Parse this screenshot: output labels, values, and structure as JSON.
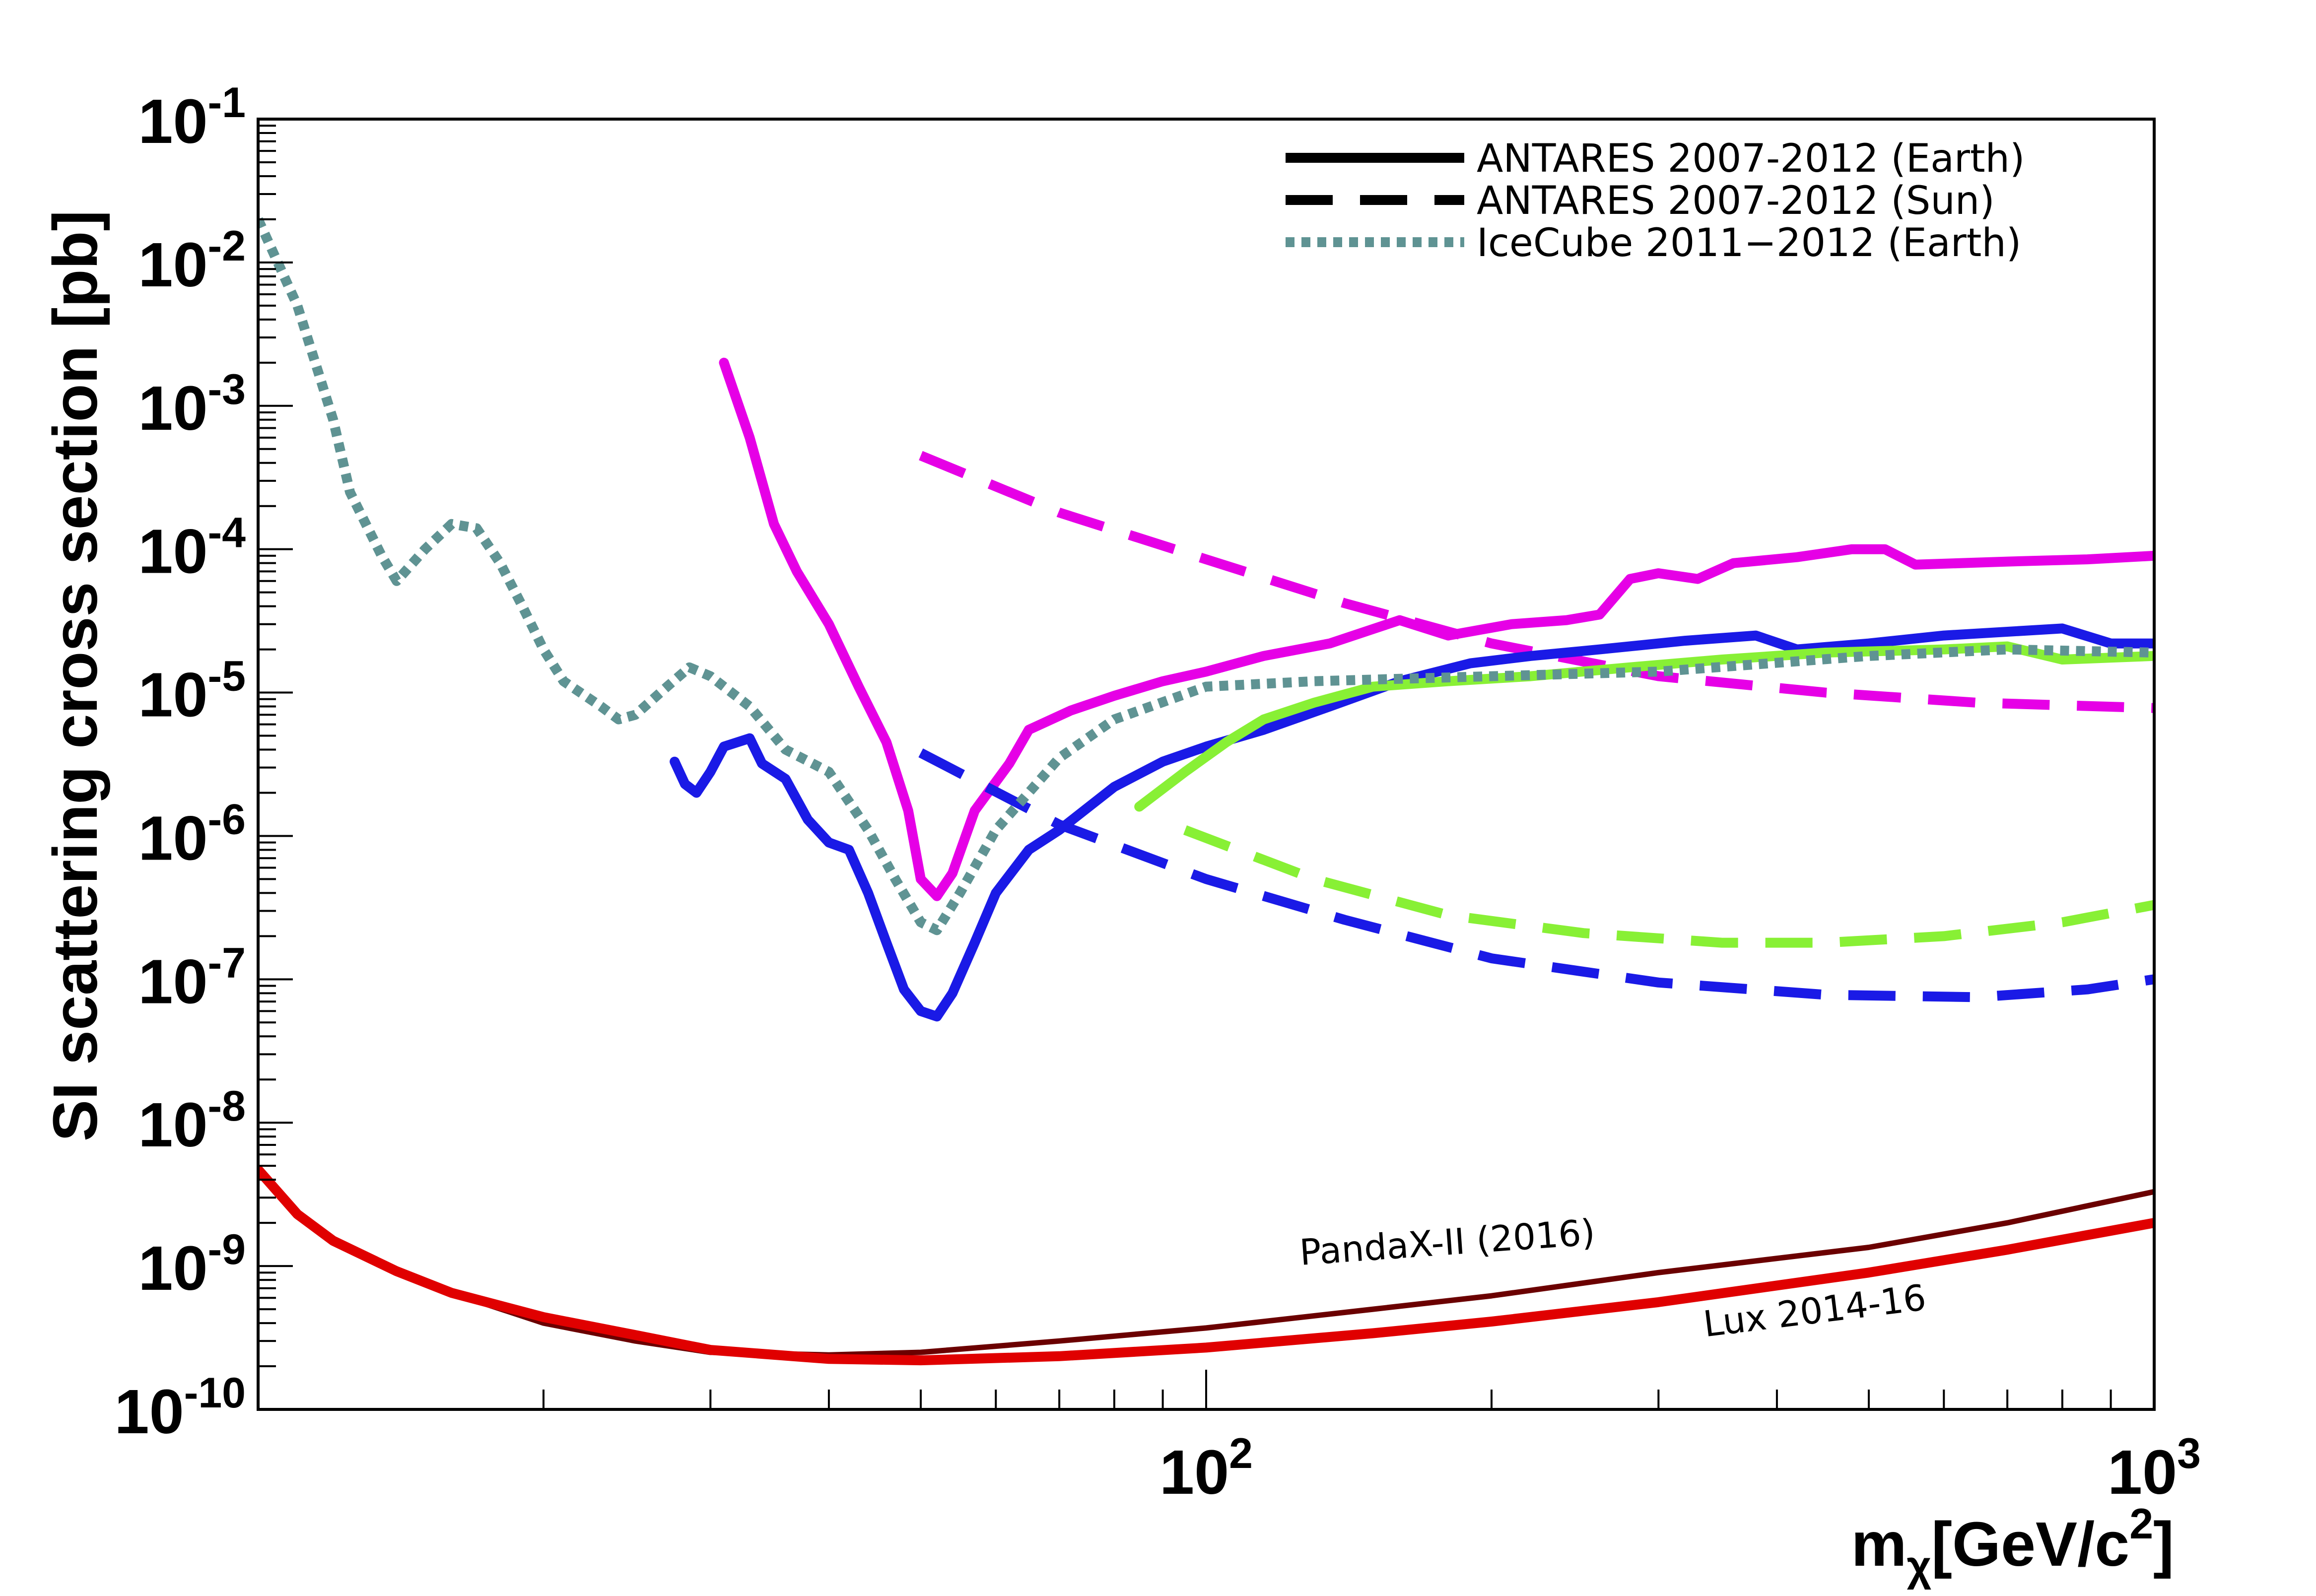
{
  "chart_data": {
    "type": "line",
    "title": "",
    "xlabel": "m",
    "xlabel_sub": "χ",
    "xlabel_unit_pre": "[GeV/c",
    "xlabel_unit_sup": "2",
    "xlabel_unit_post": "]",
    "ylabel": "SI scattering cross section [pb]",
    "x_scale": "log",
    "y_scale": "log",
    "xlim": [
      10,
      1000
    ],
    "ylim": [
      1e-10,
      0.1
    ],
    "x_ticks": [
      {
        "base": "10",
        "exp": "2",
        "value": 100
      },
      {
        "base": "10",
        "exp": "3",
        "value": 1000
      }
    ],
    "y_ticks": [
      {
        "base": "10",
        "exp": "-1",
        "value": 0.1
      },
      {
        "base": "10",
        "exp": "-2",
        "value": 0.01
      },
      {
        "base": "10",
        "exp": "-3",
        "value": 0.001
      },
      {
        "base": "10",
        "exp": "-4",
        "value": 0.0001
      },
      {
        "base": "10",
        "exp": "-5",
        "value": 1e-05
      },
      {
        "base": "10",
        "exp": "-6",
        "value": 1e-06
      },
      {
        "base": "10",
        "exp": "-7",
        "value": 1e-07
      },
      {
        "base": "10",
        "exp": "-8",
        "value": 1e-08
      },
      {
        "base": "10",
        "exp": "-9",
        "value": 1e-09
      },
      {
        "base": "10",
        "exp": "-10",
        "value": 1e-10
      }
    ],
    "grid": false,
    "legend": {
      "position": "top-right",
      "entries": [
        {
          "label": "ANTARES 2007-2012 (Earth)",
          "style": "solid",
          "color": "#000000"
        },
        {
          "label": "ANTARES 2007-2012 (Sun)",
          "style": "dashed",
          "color": "#000000"
        },
        {
          "label": "IceCube 2011−2012 (Earth)",
          "style": "dotted",
          "color": "#5f9393"
        }
      ]
    },
    "annotations": [
      {
        "text": "PandaX-II (2016)",
        "x": 180,
        "y": 1.2e-09,
        "angle": -4
      },
      {
        "text": "Lux 2014-16",
        "x": 440,
        "y": 4e-10,
        "angle": -7
      }
    ],
    "series": [
      {
        "color": "#e600e6",
        "style": "solid",
        "points": [
          [
            31,
            0.002
          ],
          [
            33,
            0.0006
          ],
          [
            35,
            0.00015
          ],
          [
            37,
            7e-05
          ],
          [
            40,
            3e-05
          ],
          [
            43,
            1.1e-05
          ],
          [
            46,
            4.5e-06
          ],
          [
            48.5,
            1.5e-06
          ],
          [
            50,
            5e-07
          ],
          [
            52,
            3.8e-07
          ],
          [
            54,
            5.5e-07
          ],
          [
            57,
            1.5e-06
          ],
          [
            62,
            3.2e-06
          ],
          [
            65,
            5.5e-06
          ],
          [
            72,
            7.5e-06
          ],
          [
            80,
            9.5e-06
          ],
          [
            90,
            1.2e-05
          ],
          [
            100,
            1.4e-05
          ],
          [
            115,
            1.8e-05
          ],
          [
            135,
            2.2e-05
          ],
          [
            160,
            3.2e-05
          ],
          [
            180,
            2.5e-05
          ],
          [
            210,
            3e-05
          ],
          [
            240,
            3.2e-05
          ],
          [
            260,
            3.5e-05
          ],
          [
            280,
            6.2e-05
          ],
          [
            300,
            6.8e-05
          ],
          [
            330,
            6.2e-05
          ],
          [
            360,
            8e-05
          ],
          [
            420,
            8.8e-05
          ],
          [
            480,
            0.0001
          ],
          [
            520,
            0.0001
          ],
          [
            560,
            7.8e-05
          ],
          [
            700,
            8.2e-05
          ],
          [
            850,
            8.5e-05
          ],
          [
            1000,
            9e-05
          ]
        ]
      },
      {
        "color": "#e600e6",
        "style": "dashed",
        "points": [
          [
            50,
            0.00045
          ],
          [
            70,
            0.00018
          ],
          [
            100,
            8.5e-05
          ],
          [
            140,
            4.2e-05
          ],
          [
            200,
            2.2e-05
          ],
          [
            300,
            1.3e-05
          ],
          [
            450,
            1e-05
          ],
          [
            650,
            8.5e-06
          ],
          [
            1000,
            7.8e-06
          ]
        ]
      },
      {
        "color": "#1a1ae6",
        "style": "solid",
        "points": [
          [
            27.5,
            3.3e-06
          ],
          [
            28.2,
            2.3e-06
          ],
          [
            29,
            2e-06
          ],
          [
            30,
            2.8e-06
          ],
          [
            31,
            4.2e-06
          ],
          [
            33,
            4.8e-06
          ],
          [
            34,
            3.2e-06
          ],
          [
            36,
            2.5e-06
          ],
          [
            38,
            1.3e-06
          ],
          [
            40,
            9e-07
          ],
          [
            42,
            8e-07
          ],
          [
            44,
            4e-07
          ],
          [
            46,
            1.8e-07
          ],
          [
            48,
            8.5e-08
          ],
          [
            50,
            6e-08
          ],
          [
            52,
            5.5e-08
          ],
          [
            54,
            8e-08
          ],
          [
            57,
            1.8e-07
          ],
          [
            60,
            4e-07
          ],
          [
            65,
            8e-07
          ],
          [
            70,
            1.1e-06
          ],
          [
            80,
            2.2e-06
          ],
          [
            90,
            3.3e-06
          ],
          [
            100,
            4.2e-06
          ],
          [
            115,
            5.5e-06
          ],
          [
            135,
            8e-06
          ],
          [
            160,
            1.2e-05
          ],
          [
            190,
            1.6e-05
          ],
          [
            220,
            1.8e-05
          ],
          [
            260,
            2e-05
          ],
          [
            320,
            2.3e-05
          ],
          [
            380,
            2.5e-05
          ],
          [
            420,
            2e-05
          ],
          [
            500,
            2.2e-05
          ],
          [
            600,
            2.5e-05
          ],
          [
            800,
            2.8e-05
          ],
          [
            900,
            2.2e-05
          ],
          [
            1000,
            2.2e-05
          ]
        ]
      },
      {
        "color": "#1a1ae6",
        "style": "dashed",
        "points": [
          [
            50,
            3.8e-06
          ],
          [
            70,
            1.2e-06
          ],
          [
            100,
            5e-07
          ],
          [
            140,
            2.6e-07
          ],
          [
            200,
            1.4e-07
          ],
          [
            300,
            9.5e-08
          ],
          [
            450,
            7.8e-08
          ],
          [
            650,
            7.5e-08
          ],
          [
            850,
            8.5e-08
          ],
          [
            1000,
            1e-07
          ]
        ]
      },
      {
        "color": "#88f035",
        "style": "solid",
        "points": [
          [
            85,
            1.6e-06
          ],
          [
            95,
            2.8e-06
          ],
          [
            105,
            4.5e-06
          ],
          [
            115,
            6.5e-06
          ],
          [
            130,
            8.5e-06
          ],
          [
            150,
            1.1e-05
          ],
          [
            180,
            1.2e-05
          ],
          [
            220,
            1.3e-05
          ],
          [
            280,
            1.5e-05
          ],
          [
            350,
            1.7e-05
          ],
          [
            450,
            1.9e-05
          ],
          [
            600,
            2e-05
          ],
          [
            700,
            2.1e-05
          ],
          [
            800,
            1.7e-05
          ],
          [
            1000,
            1.8e-05
          ]
        ]
      },
      {
        "color": "#88f035",
        "style": "dashed",
        "points": [
          [
            95,
            1.1e-06
          ],
          [
            130,
            5e-07
          ],
          [
            180,
            2.8e-07
          ],
          [
            250,
            2.1e-07
          ],
          [
            350,
            1.8e-07
          ],
          [
            450,
            1.8e-07
          ],
          [
            600,
            2e-07
          ],
          [
            800,
            2.5e-07
          ],
          [
            1000,
            3.3e-07
          ]
        ]
      },
      {
        "color": "#5f9393",
        "style": "dotted",
        "points": [
          [
            10,
            0.02
          ],
          [
            11,
            0.005
          ],
          [
            12,
            0.0008
          ],
          [
            12.5,
            0.00025
          ],
          [
            13.5,
            9e-05
          ],
          [
            14,
            6e-05
          ],
          [
            15,
            0.0001
          ],
          [
            16,
            0.00015
          ],
          [
            17,
            0.00014
          ],
          [
            18,
            8e-05
          ],
          [
            19,
            4e-05
          ],
          [
            20,
            2e-05
          ],
          [
            21,
            1.2e-05
          ],
          [
            23,
            8e-06
          ],
          [
            24,
            6.5e-06
          ],
          [
            25,
            7e-06
          ],
          [
            27,
            1.1e-05
          ],
          [
            28.5,
            1.5e-05
          ],
          [
            30,
            1.3e-05
          ],
          [
            33,
            8e-06
          ],
          [
            36,
            4e-06
          ],
          [
            40,
            2.8e-06
          ],
          [
            44,
            1.1e-06
          ],
          [
            47,
            5e-07
          ],
          [
            50,
            2.5e-07
          ],
          [
            52,
            2.2e-07
          ],
          [
            55,
            4e-07
          ],
          [
            60,
            1.1e-06
          ],
          [
            70,
            3.5e-06
          ],
          [
            80,
            6.5e-06
          ],
          [
            100,
            1.1e-05
          ],
          [
            130,
            1.2e-05
          ],
          [
            200,
            1.3e-05
          ],
          [
            300,
            1.4e-05
          ],
          [
            500,
            1.8e-05
          ],
          [
            700,
            2e-05
          ],
          [
            1000,
            1.9e-05
          ]
        ]
      },
      {
        "color": "#6b0000",
        "style": "solid",
        "points": [
          [
            10,
            4.5e-09
          ],
          [
            11,
            2.2e-09
          ],
          [
            12,
            1.5e-09
          ],
          [
            14,
            9e-10
          ],
          [
            16,
            6.5e-10
          ],
          [
            20,
            4e-10
          ],
          [
            25,
            3e-10
          ],
          [
            30,
            2.5e-10
          ],
          [
            40,
            2.4e-10
          ],
          [
            50,
            2.5e-10
          ],
          [
            70,
            3e-10
          ],
          [
            100,
            3.7e-10
          ],
          [
            150,
            5e-10
          ],
          [
            200,
            6.2e-10
          ],
          [
            300,
            9e-10
          ],
          [
            500,
            1.35e-09
          ],
          [
            700,
            2e-09
          ],
          [
            1000,
            3.3e-09
          ]
        ]
      },
      {
        "color": "#e00000",
        "style": "solid",
        "points": [
          [
            10,
            4.7e-09
          ],
          [
            11,
            2.3e-09
          ],
          [
            12,
            1.5e-09
          ],
          [
            14,
            9.2e-10
          ],
          [
            16,
            6.5e-10
          ],
          [
            20,
            4.4e-10
          ],
          [
            25,
            3.3e-10
          ],
          [
            30,
            2.6e-10
          ],
          [
            40,
            2.25e-10
          ],
          [
            50,
            2.2e-10
          ],
          [
            70,
            2.35e-10
          ],
          [
            100,
            2.7e-10
          ],
          [
            150,
            3.4e-10
          ],
          [
            200,
            4.1e-10
          ],
          [
            300,
            5.6e-10
          ],
          [
            500,
            9e-10
          ],
          [
            700,
            1.3e-09
          ],
          [
            1000,
            2e-09
          ]
        ]
      }
    ]
  }
}
